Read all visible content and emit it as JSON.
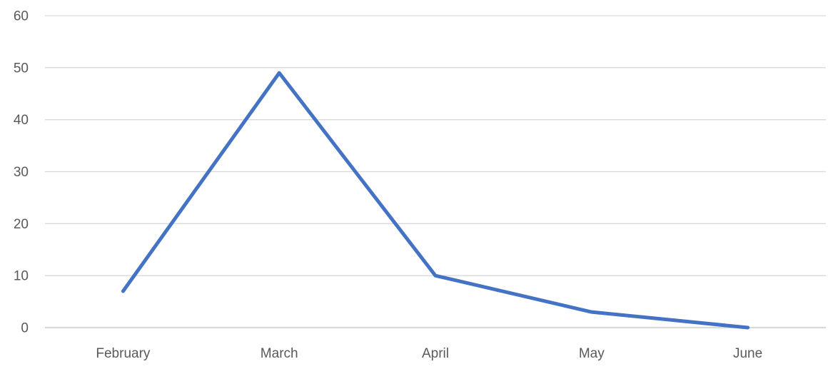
{
  "chart_data": {
    "type": "line",
    "title": "",
    "categories": [
      "February",
      "March",
      "April",
      "May",
      "June"
    ],
    "series": [
      {
        "name": "",
        "values": [
          7,
          49,
          10,
          3,
          0
        ]
      }
    ],
    "xlabel": "",
    "ylabel": "",
    "ylim": [
      0,
      60
    ],
    "yticks": [
      0,
      10,
      20,
      30,
      40,
      50,
      60
    ],
    "grid": "horizontal",
    "legend": "none",
    "colors": {
      "line": "#4472C4",
      "gridline": "#D9D9D9",
      "axis_line": "#D9D9D9",
      "tick_label": "#595959",
      "background": "#FFFFFF"
    }
  }
}
